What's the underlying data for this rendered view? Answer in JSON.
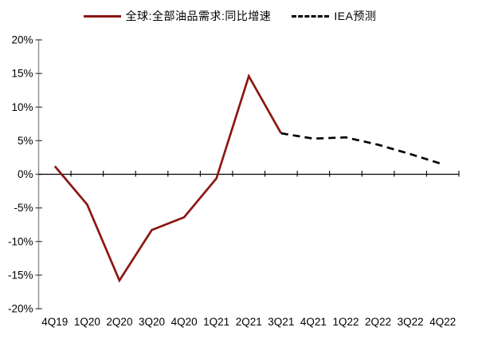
{
  "page": {
    "background": "#ffffff"
  },
  "legend": {
    "items": [
      {
        "label": "全球:全部油品需求:同比增速",
        "style": "solid",
        "color": "#8B1712"
      },
      {
        "label": "IEA预测",
        "style": "dashed",
        "color": "#000000"
      }
    ]
  },
  "chart_data": {
    "type": "line",
    "title": "",
    "xlabel": "",
    "ylabel": "",
    "categories": [
      "4Q19",
      "1Q20",
      "2Q20",
      "3Q20",
      "4Q20",
      "1Q21",
      "2Q21",
      "3Q21",
      "4Q21",
      "1Q22",
      "2Q22",
      "3Q22",
      "4Q22"
    ],
    "series": [
      {
        "name": "全球:全部油品需求:同比增速",
        "style": "solid",
        "color": "#8B1712",
        "start_index": 0,
        "values": [
          1.2,
          -4.5,
          -15.8,
          -8.3,
          -6.4,
          -0.6,
          14.6,
          6.1
        ]
      },
      {
        "name": "IEA预测",
        "style": "dashed",
        "color": "#000000",
        "start_index": 7,
        "values": [
          6.1,
          5.3,
          5.5,
          4.4,
          3.0,
          1.5
        ]
      }
    ],
    "ylim": [
      -20,
      20
    ],
    "ytick_step": 5,
    "ytick_labels": [
      "20%",
      "15%",
      "10%",
      "5%",
      "0%",
      "-5%",
      "-10%",
      "-15%",
      "-20%"
    ],
    "grid": false,
    "legend_position": "top",
    "axis_color": "#8C8C8C",
    "tick_color": "#4d4d4d",
    "zero_line_color": "#000000",
    "label_color": "#000000"
  }
}
